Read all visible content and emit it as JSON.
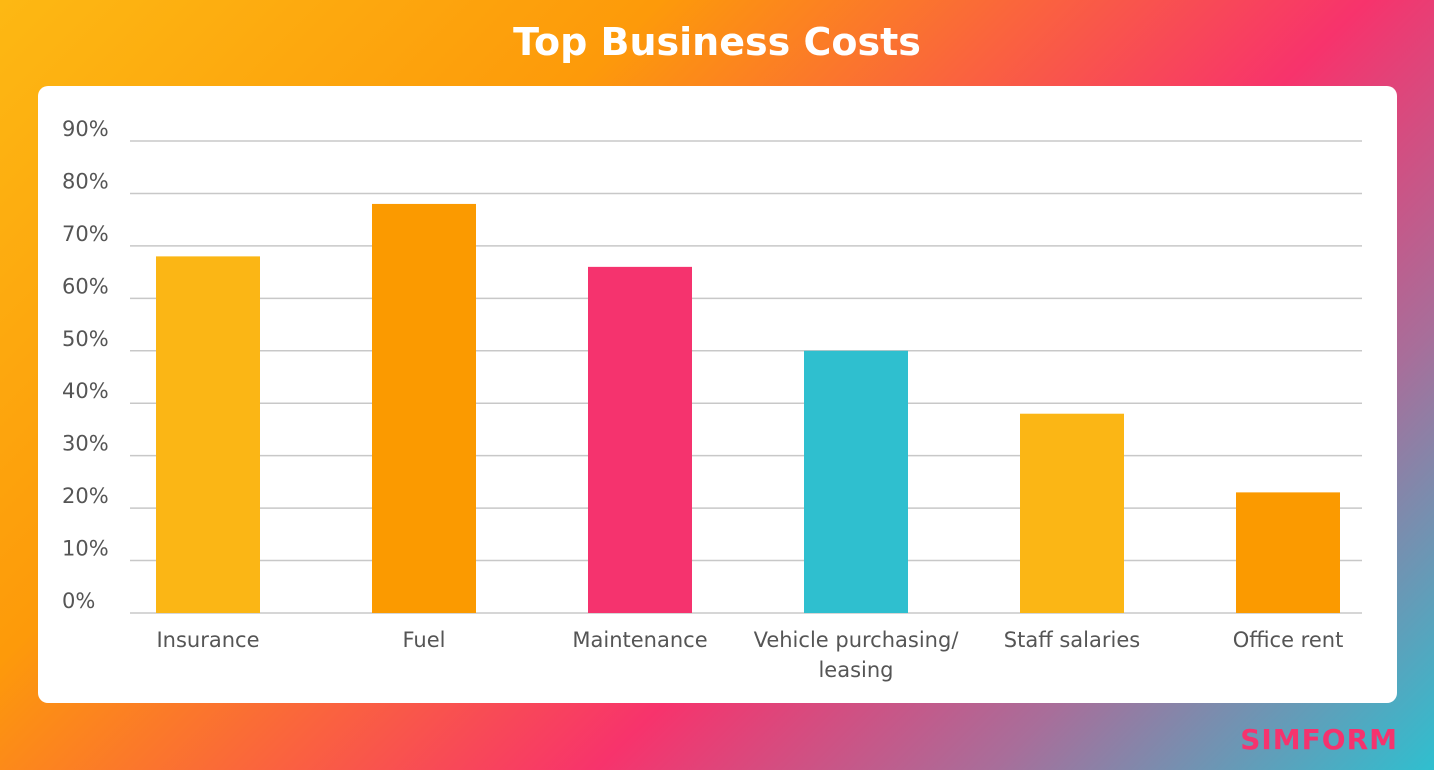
{
  "chart_data": {
    "type": "bar",
    "title": "Top Business Costs",
    "categories": [
      "Insurance",
      "Fuel",
      "Maintenance",
      "Vehicle purchasing/ leasing",
      "Staff salaries",
      "Office rent"
    ],
    "values": [
      68,
      78,
      66,
      50,
      38,
      23
    ],
    "colors": [
      "#fbb615",
      "#fb9a00",
      "#f5336e",
      "#2fbfcf",
      "#fbb615",
      "#fb9a00"
    ],
    "ylim": [
      0,
      90
    ],
    "yticks": [
      {
        "value": 0,
        "label": "0%"
      },
      {
        "value": 10,
        "label": "10%"
      },
      {
        "value": 20,
        "label": "20%"
      },
      {
        "value": 30,
        "label": "30%"
      },
      {
        "value": 40,
        "label": "40%"
      },
      {
        "value": 50,
        "label": "50%"
      },
      {
        "value": 60,
        "label": "60%"
      },
      {
        "value": 70,
        "label": "70%"
      },
      {
        "value": 80,
        "label": "80%"
      },
      {
        "value": 90,
        "label": "90%"
      }
    ],
    "grid": true
  },
  "logo": "SIMFORM"
}
